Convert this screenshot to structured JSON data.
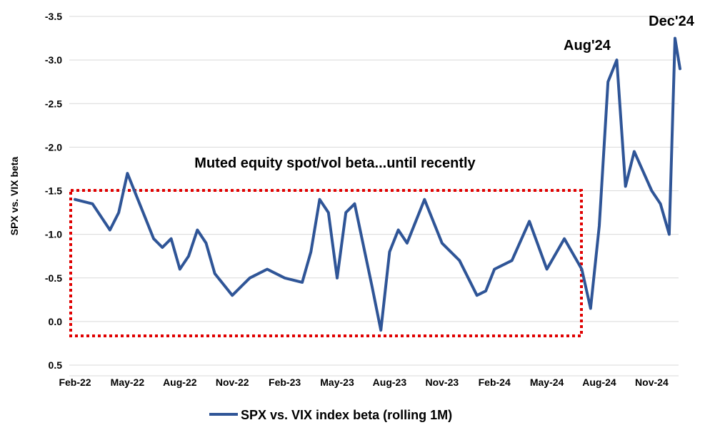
{
  "chart_data": {
    "type": "line",
    "ylabel": "SPX vs. VIX beta",
    "y_axis_reversed": true,
    "ylim": [
      0.5,
      -3.5
    ],
    "yticks": [
      -3.5,
      -3.0,
      -2.5,
      -2.0,
      -1.5,
      -1.0,
      -0.5,
      0.0,
      0.5
    ],
    "ytick_labels": [
      "-3.5",
      "-3.0",
      "-2.5",
      "-2.0",
      "-1.5",
      "-1.0",
      "-0.5",
      "0.0",
      "0.5"
    ],
    "xtick_labels": [
      "Feb-22",
      "May-22",
      "Aug-22",
      "Nov-22",
      "Feb-23",
      "May-23",
      "Aug-23",
      "Nov-23",
      "Feb-24",
      "May-24",
      "Aug-24",
      "Nov-24"
    ],
    "grid": "horizontal",
    "legend_position": "bottom",
    "series": [
      {
        "name": "SPX vs. VIX index beta (rolling 1M)",
        "color": "#2f5597",
        "points": [
          [
            "Feb-22",
            -1.4
          ],
          [
            "Mar-22",
            -1.35
          ],
          [
            "Apr-22",
            -1.05
          ],
          [
            "Apr-22",
            -1.25
          ],
          [
            "May-22",
            -1.7
          ],
          [
            "May-22",
            -1.45
          ],
          [
            "Jun-22",
            -1.2
          ],
          [
            "Jun-22",
            -0.95
          ],
          [
            "Jul-22",
            -0.85
          ],
          [
            "Jul-22",
            -0.95
          ],
          [
            "Aug-22",
            -0.6
          ],
          [
            "Aug-22",
            -0.75
          ],
          [
            "Sep-22",
            -1.05
          ],
          [
            "Sep-22",
            -0.9
          ],
          [
            "Oct-22",
            -0.55
          ],
          [
            "Nov-22",
            -0.3
          ],
          [
            "Nov-22",
            -0.4
          ],
          [
            "Dec-22",
            -0.5
          ],
          [
            "Jan-23",
            -0.6
          ],
          [
            "Feb-23",
            -0.5
          ],
          [
            "Mar-23",
            -0.45
          ],
          [
            "Mar-23",
            -0.8
          ],
          [
            "Apr-23",
            -1.4
          ],
          [
            "Apr-23",
            -1.25
          ],
          [
            "May-23",
            -0.5
          ],
          [
            "May-23",
            -1.25
          ],
          [
            "Jun-23",
            -1.35
          ],
          [
            "Jul-23",
            -0.4
          ],
          [
            "Jul-23",
            0.1
          ],
          [
            "Aug-23",
            -0.8
          ],
          [
            "Aug-23",
            -1.05
          ],
          [
            "Sep-23",
            -0.9
          ],
          [
            "Oct-23",
            -1.4
          ],
          [
            "Nov-23",
            -0.9
          ],
          [
            "Dec-23",
            -0.7
          ],
          [
            "Jan-24",
            -0.3
          ],
          [
            "Jan-24",
            -0.35
          ],
          [
            "Feb-24",
            -0.6
          ],
          [
            "Mar-24",
            -0.7
          ],
          [
            "Apr-24",
            -1.15
          ],
          [
            "May-24",
            -0.6
          ],
          [
            "Jun-24",
            -0.95
          ],
          [
            "Jul-24",
            -0.6
          ],
          [
            "Jul-24",
            -0.15
          ],
          [
            "Aug-24",
            -1.1
          ],
          [
            "Aug-24",
            -2.75
          ],
          [
            "Sep-24",
            -3.0
          ],
          [
            "Sep-24",
            -1.55
          ],
          [
            "Oct-24",
            -1.95
          ],
          [
            "Nov-24",
            -1.5
          ],
          [
            "Nov-24",
            -1.35
          ],
          [
            "Dec-24",
            -1.0
          ],
          [
            "Dec-24",
            -3.25
          ],
          [
            "Dec-24",
            -2.9
          ]
        ]
      }
    ],
    "annotations": [
      {
        "text": "Muted equity spot/vol beta...until recently",
        "style": "box-label"
      },
      {
        "text": "Aug'24",
        "style": "peak-label"
      },
      {
        "text": "Dec'24",
        "style": "peak-label"
      }
    ],
    "highlight_box": {
      "x_from": "Feb-22",
      "x_to": "Jul-24",
      "y_from": -1.5,
      "y_to": 0.15,
      "color": "#e00000",
      "style": "dotted"
    }
  }
}
